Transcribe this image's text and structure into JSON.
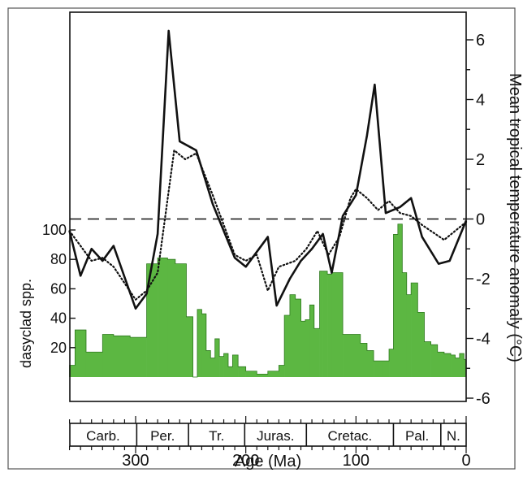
{
  "chart_data": {
    "type": "line",
    "xlabel": "Age (Ma)",
    "x_ticks": [
      300,
      200,
      100,
      0
    ],
    "xlim": [
      360,
      0
    ],
    "temperature_axis": {
      "label": "Mean tropical temperature anomaly (°C)",
      "ticks": [
        6,
        4,
        2,
        0,
        -2,
        -4,
        -6
      ],
      "ylim": [
        -6,
        6.6
      ],
      "zero_line": "dashed"
    },
    "diversity_axis": {
      "label": "dasyclad spp.",
      "ticks": [
        100,
        80,
        60,
        40,
        20
      ],
      "ylim": [
        0,
        130
      ]
    },
    "periods": [
      {
        "label": "Carb.",
        "start": 360,
        "end": 299
      },
      {
        "label": "Per.",
        "start": 299,
        "end": 252
      },
      {
        "label": "Tr.",
        "start": 252,
        "end": 201
      },
      {
        "label": "Juras.",
        "start": 201,
        "end": 145
      },
      {
        "label": "Cretac.",
        "start": 145,
        "end": 66
      },
      {
        "label": "Pal.",
        "start": 66,
        "end": 23
      },
      {
        "label": "N.",
        "start": 23,
        "end": 0
      }
    ],
    "series": [
      {
        "style": "solid",
        "color": "#111111",
        "x": [
          360,
          350,
          340,
          330,
          320,
          300,
          290,
          280,
          270,
          260,
          245,
          230,
          210,
          200,
          190,
          180,
          172,
          160,
          150,
          140,
          130,
          122,
          112,
          100,
          90,
          83,
          73,
          60,
          50,
          40,
          25,
          15,
          0
        ],
        "y": [
          -0.4,
          -1.9,
          -1.0,
          -1.4,
          -0.9,
          -3.0,
          -2.5,
          -0.5,
          6.3,
          2.6,
          2.3,
          0.5,
          -1.3,
          -1.6,
          -1.1,
          -0.6,
          -2.9,
          -2.0,
          -1.4,
          -1.0,
          -0.5,
          -1.8,
          0.1,
          0.8,
          2.8,
          4.5,
          0.2,
          0.4,
          0.7,
          -0.6,
          -1.5,
          -1.4,
          -0.05
        ]
      },
      {
        "style": "dotted",
        "color": "#111111",
        "x": [
          360,
          340,
          330,
          320,
          300,
          290,
          280,
          265,
          255,
          245,
          230,
          210,
          200,
          190,
          180,
          170,
          155,
          145,
          135,
          125,
          115,
          105,
          100,
          90,
          80,
          70,
          60,
          50,
          40,
          20,
          0
        ],
        "y": [
          -0.4,
          -1.4,
          -1.3,
          -1.6,
          -2.7,
          -2.4,
          -1.8,
          2.3,
          2.0,
          2.2,
          0.8,
          -1.2,
          -1.4,
          -1.2,
          -2.4,
          -1.6,
          -1.4,
          -1.0,
          -0.4,
          -1.2,
          -0.6,
          0.7,
          1.0,
          0.7,
          0.3,
          0.6,
          0.2,
          0.1,
          -0.2,
          -0.7,
          -0.1
        ]
      },
      {
        "style": "filled-steps",
        "color": "#5cb742",
        "edges": [
          360,
          355,
          345,
          330,
          320,
          305,
          290,
          280,
          271,
          264,
          254,
          248,
          244,
          240,
          236,
          232,
          228,
          224,
          220,
          216,
          212,
          207,
          200,
          190,
          180,
          170,
          165,
          160,
          155,
          150,
          146,
          142,
          138,
          133,
          130,
          126,
          122,
          112,
          104,
          96,
          90,
          84,
          76,
          70,
          66,
          62,
          58,
          54,
          50,
          44,
          38,
          32,
          26,
          20,
          14,
          10,
          6,
          2,
          0
        ],
        "values": [
          8,
          32,
          17,
          29,
          28,
          27,
          77,
          81,
          80,
          77,
          41,
          0,
          46,
          43,
          18,
          13,
          26,
          14,
          16,
          7,
          15,
          7,
          4,
          2,
          4,
          8,
          42,
          56,
          53,
          38,
          39,
          49,
          33,
          72,
          72,
          70,
          71,
          29,
          29,
          23,
          18,
          11,
          11,
          19,
          97,
          104,
          71,
          56,
          64,
          44,
          24,
          22,
          17,
          16,
          15,
          13,
          16,
          12
        ]
      }
    ]
  }
}
